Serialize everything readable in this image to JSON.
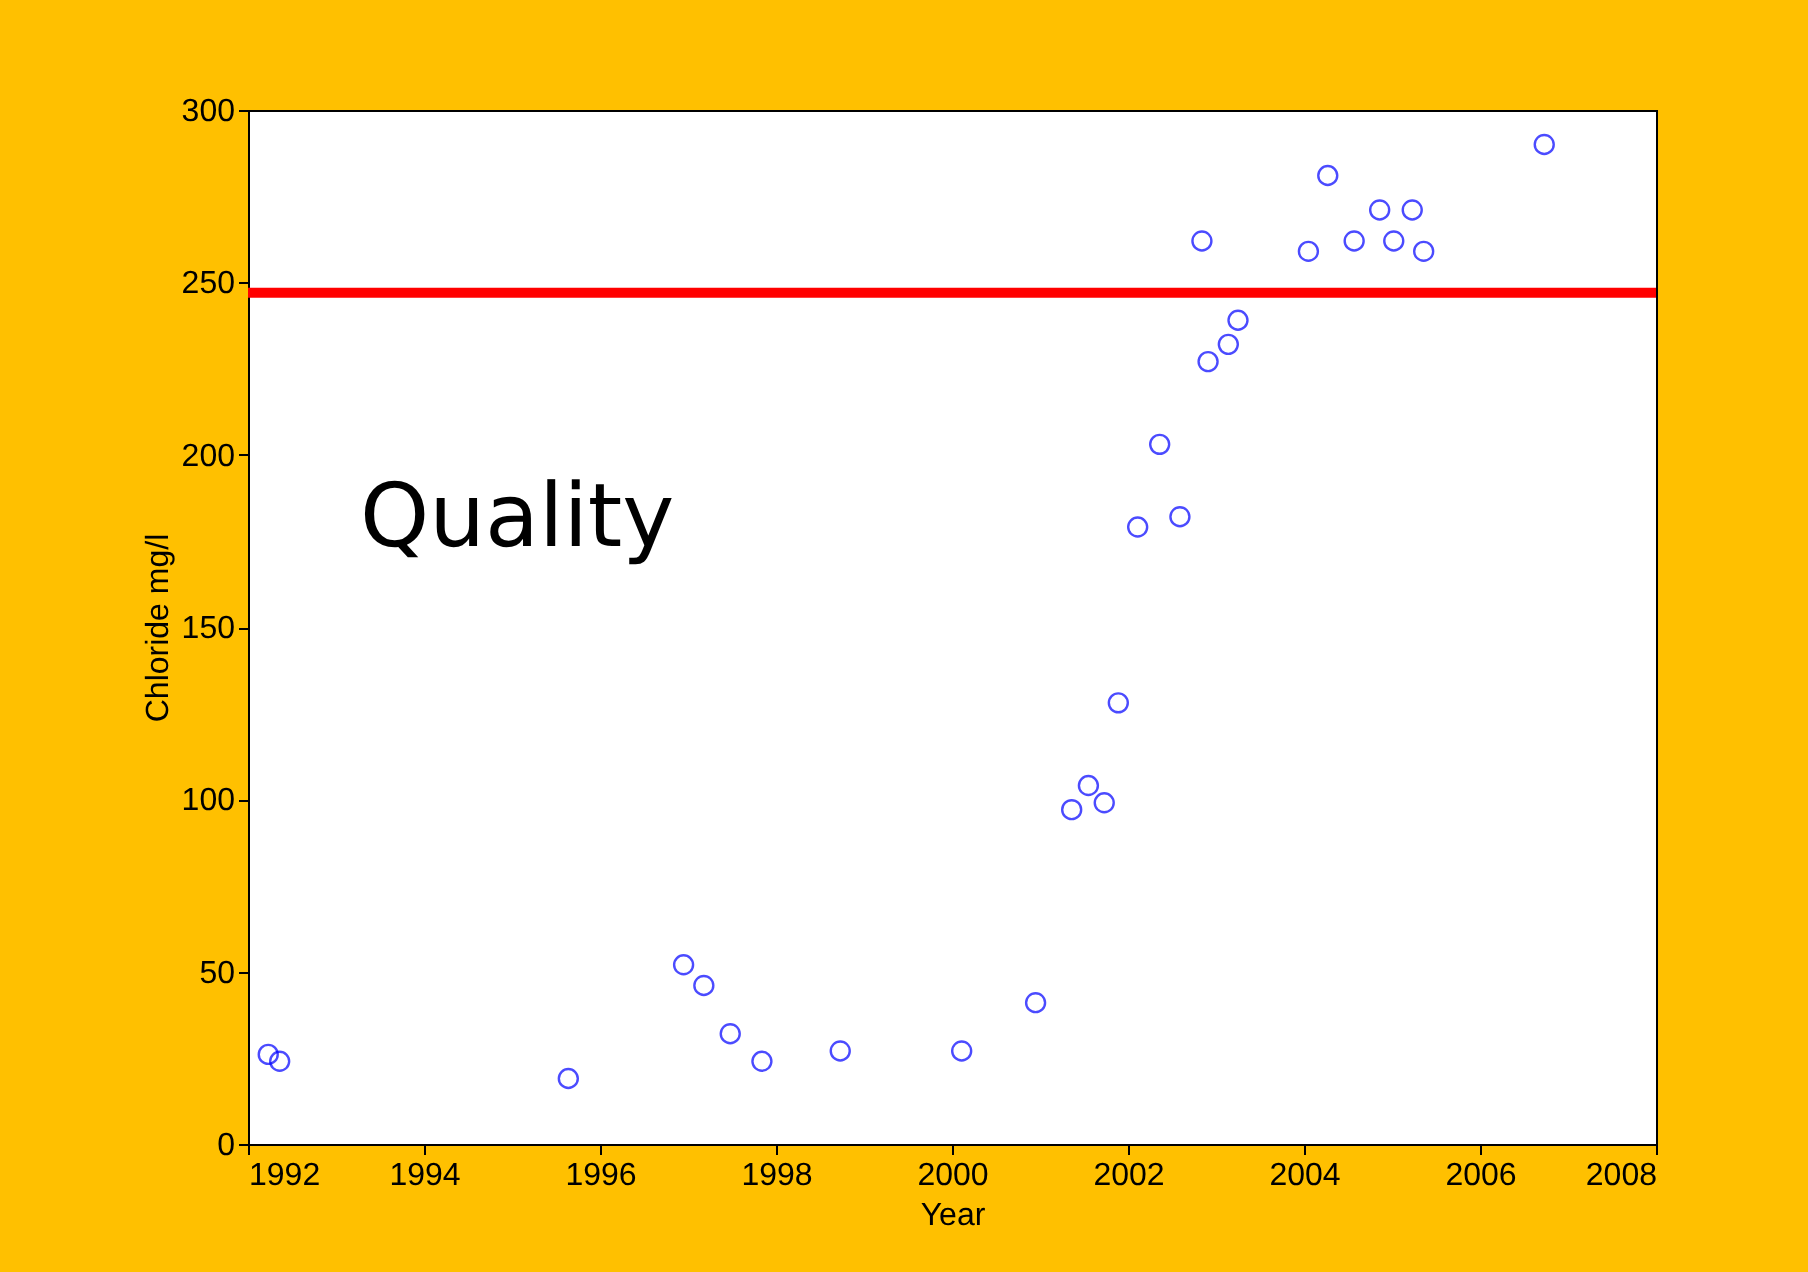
{
  "chart_data": {
    "type": "scatter",
    "xlabel": "Year",
    "ylabel": "Chloride mg/l",
    "annotations": [
      "Quality"
    ],
    "x": [
      1992.23,
      1992.36,
      1995.64,
      1996.95,
      1997.18,
      1997.48,
      1997.84,
      1998.73,
      2000.11,
      2000.95,
      2001.36,
      2001.55,
      2001.73,
      2001.89,
      2002.11,
      2002.36,
      2002.59,
      2002.84,
      2002.91,
      2003.14,
      2003.25,
      2004.05,
      2004.27,
      2004.57,
      2004.86,
      2005.02,
      2005.23,
      2005.36,
      2006.73
    ],
    "series": [
      {
        "color": "#0000ff",
        "values": [
          26,
          24,
          19,
          52,
          46,
          32,
          24,
          27,
          27,
          41,
          97,
          104,
          99,
          128,
          179,
          203,
          182,
          262,
          227,
          232,
          239,
          259,
          281,
          262,
          271,
          262,
          271,
          259,
          290
        ]
      }
    ],
    "marker": "circle",
    "grid": false,
    "xlim": [
      1992,
      2008
    ],
    "xticks": [
      1992,
      1994,
      1996,
      1998,
      2000,
      2002,
      2004,
      2006,
      2008
    ],
    "ylim": [
      0,
      300
    ],
    "yticks": [
      0,
      50,
      100,
      150,
      200,
      250,
      300
    ],
    "ref_lines": [
      {
        "axis": "y",
        "value": 247,
        "color": "#ff0000",
        "line_style": "solid"
      }
    ]
  }
}
